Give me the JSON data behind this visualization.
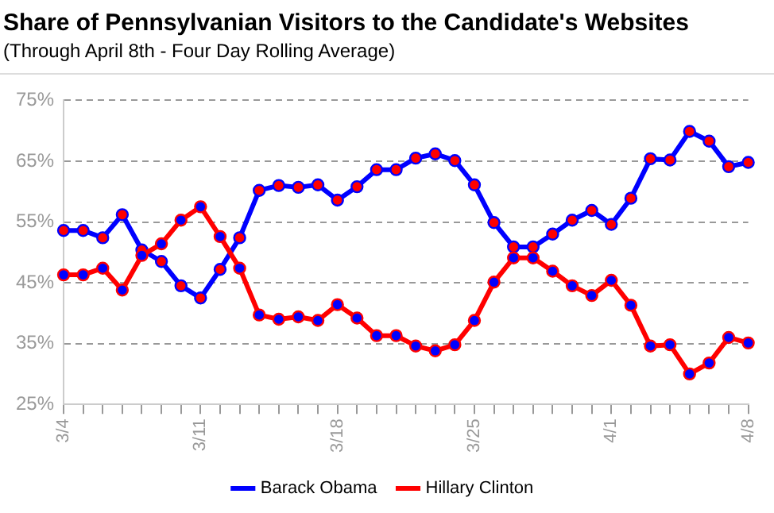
{
  "chart_data": {
    "type": "line",
    "title": "Share of Pennsylvanian Visitors to the Candidate's Websites",
    "subtitle": "(Through April 8th - Four Day Rolling Average)",
    "categories": [
      "3/4",
      null,
      null,
      null,
      null,
      null,
      null,
      "3/11",
      null,
      null,
      null,
      null,
      null,
      null,
      "3/18",
      null,
      null,
      null,
      null,
      null,
      null,
      "3/25",
      null,
      null,
      null,
      null,
      null,
      null,
      "4/1",
      null,
      null,
      null,
      null,
      null,
      null,
      "4/8"
    ],
    "series": [
      {
        "name": "Barack Obama",
        "color": "#0000ff",
        "values": [
          53.6,
          53.6,
          52.4,
          56.2,
          50.4,
          48.5,
          44.5,
          42.5,
          47.2,
          52.4,
          60.2,
          61.0,
          60.7,
          61.1,
          58.6,
          60.8,
          63.6,
          63.6,
          65.5,
          66.2,
          65.1,
          61.1,
          54.9,
          50.9,
          50.9,
          53.0,
          55.3,
          56.9,
          54.6,
          58.9,
          65.4,
          65.2,
          69.9,
          68.3,
          64.1,
          64.8
        ]
      },
      {
        "name": "Hillary Clinton",
        "color": "#ff0000",
        "values": [
          46.3,
          46.3,
          47.4,
          43.8,
          49.5,
          51.4,
          55.3,
          57.5,
          52.6,
          47.4,
          39.7,
          39.0,
          39.4,
          38.8,
          41.4,
          39.2,
          36.3,
          36.3,
          34.6,
          33.8,
          34.8,
          38.8,
          45.1,
          49.1,
          49.1,
          46.9,
          44.5,
          42.9,
          45.4,
          41.3,
          34.6,
          34.8,
          30.0,
          31.8,
          36.0,
          35.1
        ]
      }
    ],
    "ylim": [
      25,
      75
    ],
    "yticks": [
      {
        "value": 25,
        "label": "25%"
      },
      {
        "value": 35,
        "label": "35%"
      },
      {
        "value": 45,
        "label": "45%"
      },
      {
        "value": 55,
        "label": "55%"
      },
      {
        "value": 65,
        "label": "65%"
      },
      {
        "value": 75,
        "label": "75%"
      }
    ],
    "grid": "y",
    "legend": "bottom",
    "marker": "circle",
    "line_style": "solid"
  }
}
